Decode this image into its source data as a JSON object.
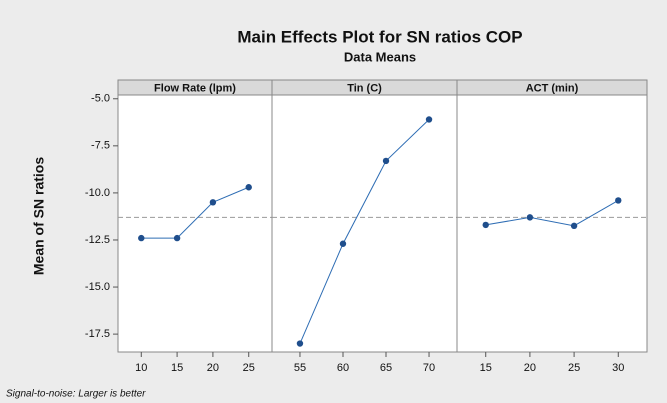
{
  "chart_data": {
    "type": "line",
    "title": "Main Effects Plot for SN ratios COP",
    "subtitle": "Data Means",
    "ylabel": "Mean of SN ratios",
    "footnote": "Signal-to-noise: Larger is better",
    "color": "#2e6db4",
    "marker_color": "#1f4e8c",
    "reference_line": -11.3,
    "ylim": [
      -18.45,
      -4.8
    ],
    "yticks": [
      {
        "value": -5,
        "label": "-5.0"
      },
      -7.5,
      {
        "value": -10,
        "label": "-10.0"
      },
      -12.5,
      {
        "value": -15,
        "label": "-15.0"
      },
      -17.5
    ],
    "panels": [
      {
        "name": "Flow Rate (lpm)",
        "categories": [
          "10",
          "15",
          "20",
          "25"
        ],
        "values": [
          -12.4,
          -12.4,
          -10.5,
          -9.7
        ]
      },
      {
        "name": "Tin (C)",
        "categories": [
          "55",
          "60",
          "65",
          "70"
        ],
        "values": [
          -18.0,
          -12.7,
          -8.3,
          -6.1
        ]
      },
      {
        "name": "ACT (min)",
        "categories": [
          "15",
          "20",
          "25",
          "30"
        ],
        "values": [
          -11.7,
          -11.3,
          -11.75,
          -10.4
        ]
      }
    ]
  }
}
